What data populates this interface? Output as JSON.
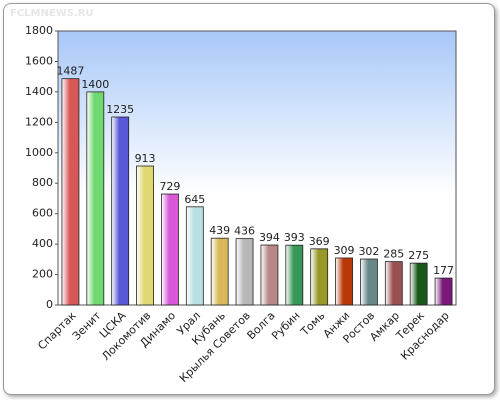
{
  "chart_data": {
    "type": "bar",
    "watermark": "FCLMNEWS.RU",
    "categories": [
      "Спартак",
      "Зенит",
      "ЦСКА",
      "Локомотив",
      "Динамо",
      "Урал",
      "Кубань",
      "Крылья Советов",
      "Волга",
      "Рубин",
      "Томь",
      "Анжи",
      "Ростов",
      "Амкар",
      "Терек",
      "Краснодар"
    ],
    "values": [
      1487,
      1400,
      1235,
      913,
      729,
      645,
      439,
      436,
      394,
      393,
      369,
      309,
      302,
      285,
      275,
      177
    ],
    "colors": [
      "#d85858",
      "#70d870",
      "#5858d8",
      "#e0d870",
      "#d858d8",
      "#b8e0e0",
      "#d8b858",
      "#b8b8b8",
      "#b88888",
      "#389858",
      "#989828",
      "#b83808",
      "#688888",
      "#985050",
      "#185818",
      "#781878"
    ],
    "ylim": [
      0,
      1800
    ],
    "yticks": [
      0,
      200,
      400,
      600,
      800,
      1000,
      1200,
      1400,
      1600,
      1800
    ],
    "grid": false
  }
}
